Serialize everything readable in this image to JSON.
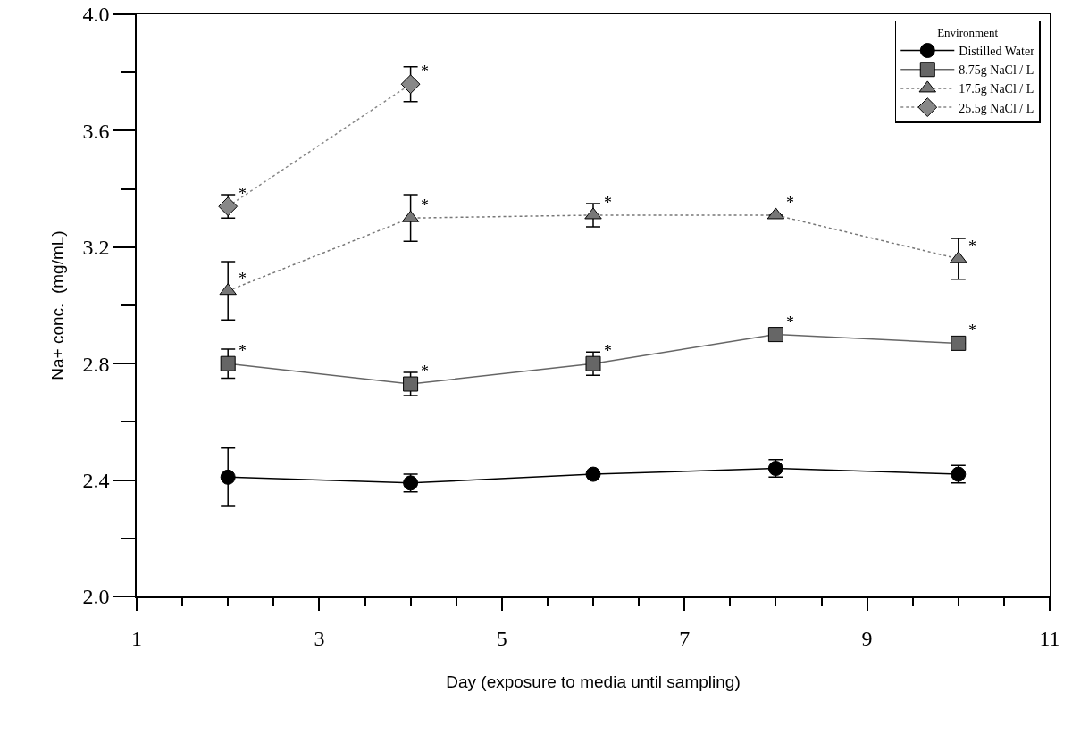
{
  "chart_data": {
    "type": "line",
    "xlabel": "Day (exposure to media until sampling)",
    "ylabel": "Na+ conc.  (mg/mL)",
    "legend_title": "Environment",
    "legend": "top right",
    "grid": false,
    "x": [
      2,
      4,
      6,
      8,
      10
    ],
    "xlim": [
      1,
      11
    ],
    "xticks": [
      1,
      {
        "value": 1.5,
        "label": null
      },
      {
        "value": 2,
        "label": null
      },
      {
        "value": 2.5,
        "label": null
      },
      3,
      {
        "value": 3.5,
        "label": null
      },
      {
        "value": 4,
        "label": null
      },
      {
        "value": 4.5,
        "label": null
      },
      5,
      {
        "value": 5.5,
        "label": null
      },
      {
        "value": 6,
        "label": null
      },
      {
        "value": 6.5,
        "label": null
      },
      7,
      {
        "value": 7.5,
        "label": null
      },
      {
        "value": 8,
        "label": null
      },
      {
        "value": 8.5,
        "label": null
      },
      9,
      {
        "value": 9.5,
        "label": null
      },
      {
        "value": 10,
        "label": null
      },
      {
        "value": 10.5,
        "label": null
      },
      11
    ],
    "ylim": [
      2.0,
      4.0
    ],
    "yticks": [
      {
        "value": 2.0,
        "label": "2.0"
      },
      {
        "value": 2.2,
        "label": null
      },
      2.4,
      {
        "value": 2.6,
        "label": null
      },
      2.8,
      {
        "value": 3.0,
        "label": null
      },
      3.2,
      {
        "value": 3.4,
        "label": null
      },
      3.6,
      {
        "value": 3.8,
        "label": null
      },
      {
        "value": 4.0,
        "label": "4.0"
      }
    ],
    "series": [
      {
        "name": "Distilled Water",
        "color": "#000000",
        "marker": "circle",
        "line_style": "solid",
        "values": [
          2.41,
          2.39,
          2.42,
          2.44,
          2.42
        ],
        "errors": [
          0.1,
          0.03,
          null,
          0.03,
          0.03
        ]
      },
      {
        "name": "8.75g NaCl / L",
        "color": "#666666",
        "marker": "square",
        "line_style": "solid",
        "values": [
          2.8,
          2.73,
          2.8,
          2.9,
          2.87
        ],
        "errors": [
          0.05,
          0.04,
          0.04,
          null,
          null
        ]
      },
      {
        "name": "17.5g NaCl / L",
        "color": "#777777",
        "marker": "triangle",
        "line_style": "dotted",
        "values": [
          3.05,
          3.3,
          3.31,
          3.31,
          3.16
        ],
        "errors": [
          0.1,
          0.08,
          0.04,
          null,
          0.07
        ]
      },
      {
        "name": "25.5g NaCl / L",
        "color": "#888888",
        "marker": "diamond",
        "line_style": "dotted",
        "values": [
          3.34,
          3.76,
          null,
          null,
          null
        ],
        "errors": [
          0.04,
          0.06,
          null,
          null,
          null
        ]
      }
    ],
    "annotations": [
      {
        "text": "*",
        "x": 2,
        "y": 3.34
      },
      {
        "text": "*",
        "x": 4,
        "y": 3.76
      },
      {
        "text": "*",
        "x": 2,
        "y": 3.05
      },
      {
        "text": "*",
        "x": 4,
        "y": 3.3
      },
      {
        "text": "*",
        "x": 6,
        "y": 3.31
      },
      {
        "text": "*",
        "x": 8,
        "y": 3.31
      },
      {
        "text": "*",
        "x": 10,
        "y": 3.16
      },
      {
        "text": "*",
        "x": 2,
        "y": 2.8
      },
      {
        "text": "*",
        "x": 4,
        "y": 2.73
      },
      {
        "text": "*",
        "x": 6,
        "y": 2.8
      },
      {
        "text": "*",
        "x": 8,
        "y": 2.9
      },
      {
        "text": "*",
        "x": 10,
        "y": 2.87
      }
    ]
  }
}
